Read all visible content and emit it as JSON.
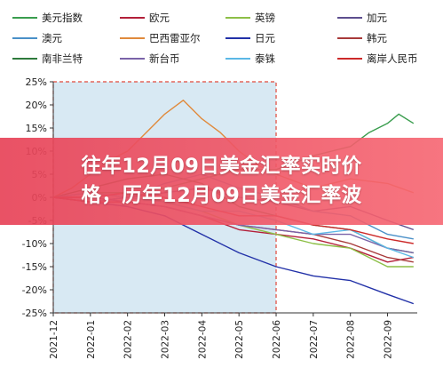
{
  "overlay": {
    "line1": "往年12月09日美金汇率实时价",
    "line2": "格，历年12月09日美金汇率波"
  },
  "chart_data": {
    "type": "line",
    "title": "",
    "xlabel": "",
    "ylabel": "",
    "y_unit": "%",
    "ylim": [
      -25,
      25
    ],
    "yticks": [
      -25,
      -20,
      -15,
      -10,
      -5,
      0,
      5,
      10,
      15,
      20,
      25
    ],
    "ytick_labels": [
      "-25%",
      "-20%",
      "-15%",
      "-10%",
      "-5%",
      "0%",
      "5%",
      "10%",
      "15%",
      "20%",
      "25%"
    ],
    "x_ticks": [
      "2021-12",
      "2022-01",
      "2022-02",
      "2022-03",
      "2022-04",
      "2022-05",
      "2022-06",
      "2022-07",
      "2022-08",
      "2022-09"
    ],
    "xlim": [
      0,
      9.8
    ],
    "grid": false,
    "legend_position": "top",
    "highlight_region": {
      "x_start": "2021-12",
      "x_end": "2022-06",
      "fill": "#d8e9f3",
      "border": "#e04a3c",
      "style": "dashed"
    },
    "series": [
      {
        "name": "美元指数",
        "color": "#3a9d4e",
        "x": [
          0.0,
          1.0,
          2.0,
          3.0,
          4.0,
          5.0,
          6.0,
          7.0,
          8.0,
          8.5,
          9.0,
          9.3,
          9.7
        ],
        "y": [
          0,
          1,
          1,
          2,
          4,
          6,
          6,
          9,
          11,
          14,
          16,
          18,
          16
        ]
      },
      {
        "name": "欧元",
        "color": "#b3203a",
        "x": [
          0.0,
          1.0,
          2.0,
          3.0,
          4.0,
          5.0,
          6.0,
          7.0,
          8.0,
          9.0,
          9.7
        ],
        "y": [
          0,
          -1,
          -1,
          -2,
          -4,
          -7,
          -8,
          -9,
          -11,
          -14,
          -13
        ]
      },
      {
        "name": "英镑",
        "color": "#8dbf47",
        "x": [
          0.0,
          1.0,
          2.0,
          3.0,
          4.0,
          5.0,
          6.0,
          7.0,
          8.0,
          9.0,
          9.7
        ],
        "y": [
          0,
          0,
          1,
          -1,
          -3,
          -6,
          -8,
          -10,
          -11,
          -15,
          -15
        ]
      },
      {
        "name": "加元",
        "color": "#5d4e8f",
        "x": [
          0.0,
          1.0,
          2.0,
          3.0,
          4.0,
          5.0,
          6.0,
          7.0,
          8.0,
          9.0,
          9.7
        ],
        "y": [
          0,
          -1,
          0,
          1,
          2,
          0,
          -1,
          -3,
          -2,
          -5,
          -7
        ]
      },
      {
        "name": "澳元",
        "color": "#4a90c8",
        "x": [
          0.0,
          1.0,
          2.0,
          3.0,
          4.0,
          5.0,
          6.0,
          7.0,
          8.0,
          9.0,
          9.7
        ],
        "y": [
          0,
          -1,
          0,
          3,
          5,
          2,
          0,
          -3,
          -4,
          -8,
          -9
        ]
      },
      {
        "name": "巴西雷亚尔",
        "color": "#e08a3c",
        "x": [
          0.0,
          0.5,
          1.0,
          1.5,
          2.0,
          2.5,
          3.0,
          3.5,
          4.0,
          4.5,
          5.0,
          5.5,
          6.0,
          7.0,
          8.0,
          9.0,
          9.7
        ],
        "y": [
          0,
          2,
          5,
          8,
          10,
          14,
          18,
          21,
          17,
          14,
          10,
          7,
          5,
          2,
          4,
          3,
          1
        ]
      },
      {
        "name": "日元",
        "color": "#2231a8",
        "x": [
          0.0,
          1.0,
          2.0,
          3.0,
          4.0,
          5.0,
          6.0,
          7.0,
          8.0,
          9.0,
          9.7
        ],
        "y": [
          0,
          -1,
          -2,
          -4,
          -8,
          -12,
          -15,
          -17,
          -18,
          -21,
          -23
        ]
      },
      {
        "name": "韩元",
        "color": "#a83a3a",
        "x": [
          0.0,
          1.0,
          2.0,
          3.0,
          4.0,
          5.0,
          6.0,
          7.0,
          8.0,
          9.0,
          9.7
        ],
        "y": [
          0,
          -1,
          -1,
          -2,
          -4,
          -6,
          -7,
          -8,
          -10,
          -13,
          -14
        ]
      },
      {
        "name": "南非兰特",
        "color": "#2e7a3c",
        "x": [
          0.0,
          1.0,
          2.0,
          3.0,
          4.0,
          5.0,
          6.0,
          7.0,
          8.0,
          9.0,
          9.7
        ],
        "y": [
          0,
          2,
          4,
          5,
          3,
          -2,
          -4,
          -6,
          -7,
          -11,
          -12
        ]
      },
      {
        "name": "新台币",
        "color": "#7a63a8",
        "x": [
          0.0,
          1.0,
          2.0,
          3.0,
          4.0,
          5.0,
          6.0,
          7.0,
          8.0,
          9.0,
          9.7
        ],
        "y": [
          0,
          0,
          -1,
          -2,
          -4,
          -6,
          -7,
          -8,
          -8,
          -11,
          -12
        ]
      },
      {
        "name": "泰铢",
        "color": "#5bb8e6",
        "x": [
          0.0,
          1.0,
          2.0,
          3.0,
          4.0,
          5.0,
          6.0,
          7.0,
          8.0,
          9.0,
          9.7
        ],
        "y": [
          0,
          1,
          0,
          -1,
          -3,
          -3,
          -5,
          -8,
          -7,
          -11,
          -13
        ]
      },
      {
        "name": "离岸人民币",
        "color": "#cc2a2a",
        "x": [
          0.0,
          1.0,
          2.0,
          3.0,
          4.0,
          5.0,
          6.0,
          7.0,
          8.0,
          9.0,
          9.7
        ],
        "y": [
          0,
          0,
          1,
          0,
          -2,
          -4,
          -4,
          -6,
          -7,
          -9,
          -10
        ]
      }
    ]
  }
}
